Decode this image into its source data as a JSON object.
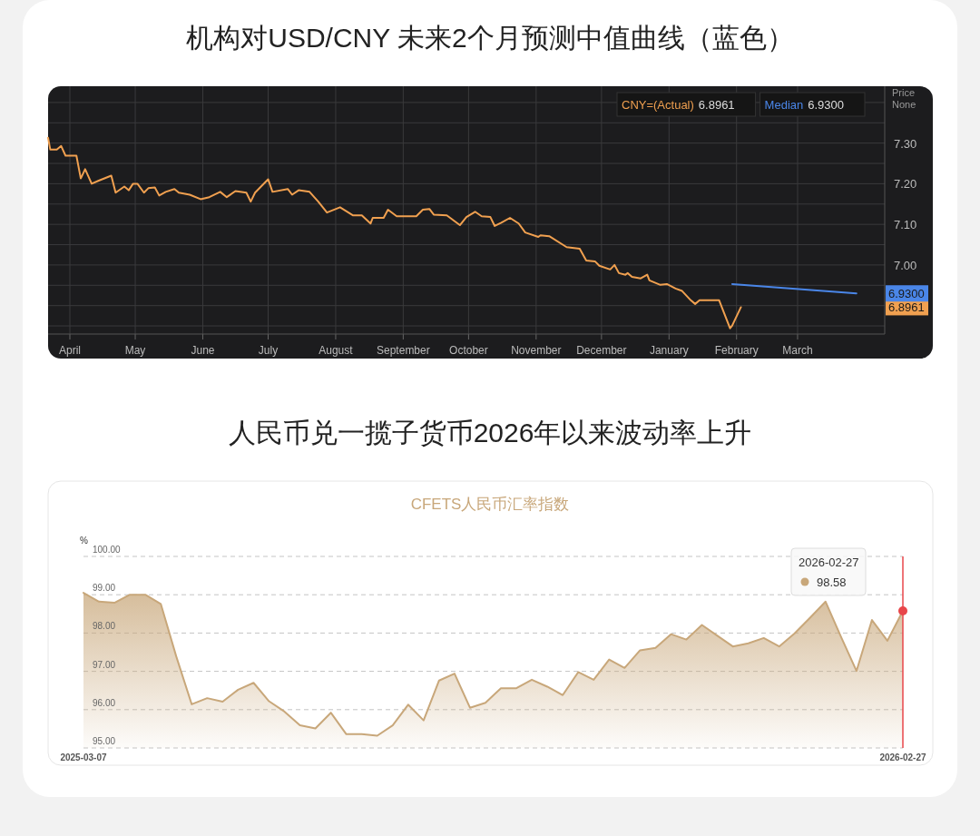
{
  "chart_data": [
    {
      "type": "line",
      "title": "机构对USD/CNY 未来2个月预测中值曲线（蓝色）",
      "xlim": [
        "2025-03-22",
        "2026-04-10"
      ],
      "xticks": [
        {
          "value": "2025-04-01",
          "label": "April"
        },
        {
          "value": "2025-05-01",
          "label": "May"
        },
        {
          "value": "2025-06-01",
          "label": "June"
        },
        {
          "value": "2025-07-01",
          "label": "July"
        },
        {
          "value": "2025-08-01",
          "label": "August"
        },
        {
          "value": "2025-09-01",
          "label": "September"
        },
        {
          "value": "2025-10-01",
          "label": "October"
        },
        {
          "value": "2025-11-01",
          "label": "November"
        },
        {
          "value": "2025-12-01",
          "label": "December"
        },
        {
          "value": "2026-01-01",
          "label": "January"
        },
        {
          "value": "2026-02-01",
          "label": "February"
        },
        {
          "value": "2026-03-01",
          "label": "March"
        }
      ],
      "ylim": [
        6.83,
        7.44
      ],
      "yticks": [
        {
          "value": 6.85,
          "label": null
        },
        {
          "value": 6.9,
          "label": null
        },
        {
          "value": 6.95,
          "label": null
        },
        {
          "value": 7.0,
          "label": "7.00"
        },
        {
          "value": 7.05,
          "label": null
        },
        {
          "value": 7.1,
          "label": "7.10"
        },
        {
          "value": 7.15,
          "label": null
        },
        {
          "value": 7.2,
          "label": "7.20"
        },
        {
          "value": 7.25,
          "label": null
        },
        {
          "value": 7.3,
          "label": "7.30"
        },
        {
          "value": 7.35,
          "label": null
        },
        {
          "value": 7.4,
          "label": null
        }
      ],
      "grid": true,
      "legend": "top right",
      "annotations": [
        "Price None",
        "6.8961",
        "6.9300",
        "6.8961",
        "6.9300"
      ],
      "series": [
        {
          "name": "CNY=(Actual)",
          "color": "#f0a050",
          "x": [
            "2025-03-22",
            "2025-03-23",
            "2025-03-26",
            "2025-03-28",
            "2025-03-30",
            "2025-04-04",
            "2025-04-06",
            "2025-04-08",
            "2025-04-11",
            "2025-04-14",
            "2025-04-20",
            "2025-04-22",
            "2025-04-26",
            "2025-04-28",
            "2025-04-30",
            "2025-05-02",
            "2025-05-05",
            "2025-05-07",
            "2025-05-10",
            "2025-05-12",
            "2025-05-15",
            "2025-05-19",
            "2025-05-21",
            "2025-05-26",
            "2025-05-31",
            "2025-06-04",
            "2025-06-09",
            "2025-06-12",
            "2025-06-16",
            "2025-06-21",
            "2025-06-23",
            "2025-06-25",
            "2025-07-01",
            "2025-07-03",
            "2025-07-10",
            "2025-07-12",
            "2025-07-15",
            "2025-07-20",
            "2025-07-24",
            "2025-07-28",
            "2025-08-03",
            "2025-08-09",
            "2025-08-13",
            "2025-08-17",
            "2025-08-18",
            "2025-08-23",
            "2025-08-25",
            "2025-08-29",
            "2025-09-07",
            "2025-09-10",
            "2025-09-13",
            "2025-09-15",
            "2025-09-21",
            "2025-09-27",
            "2025-09-30",
            "2025-10-04",
            "2025-10-07",
            "2025-10-11",
            "2025-10-13",
            "2025-10-16",
            "2025-10-20",
            "2025-10-24",
            "2025-10-27",
            "2025-11-02",
            "2025-11-03",
            "2025-11-07",
            "2025-11-15",
            "2025-11-21",
            "2025-11-24",
            "2025-11-28",
            "2025-11-30",
            "2025-12-05",
            "2025-12-07",
            "2025-12-09",
            "2025-12-12",
            "2025-12-13",
            "2025-12-15",
            "2025-12-19",
            "2025-12-22",
            "2025-12-23",
            "2025-12-28",
            "2025-12-31",
            "2026-01-04",
            "2026-01-07",
            "2026-01-11",
            "2026-01-13",
            "2026-01-15",
            "2026-01-24",
            "2026-01-29",
            "2026-01-30",
            "2026-02-03"
          ],
          "values": [
            7.313,
            7.284,
            7.284,
            7.293,
            7.269,
            7.269,
            7.213,
            7.236,
            7.2,
            7.207,
            7.22,
            7.178,
            7.193,
            7.184,
            7.2,
            7.2,
            7.178,
            7.189,
            7.191,
            7.171,
            7.18,
            7.187,
            7.178,
            7.173,
            7.162,
            7.167,
            7.18,
            7.167,
            7.182,
            7.178,
            7.156,
            7.178,
            7.211,
            7.18,
            7.187,
            7.173,
            7.184,
            7.18,
            7.156,
            7.129,
            7.142,
            7.122,
            7.122,
            7.102,
            7.116,
            7.116,
            7.136,
            7.12,
            7.12,
            7.136,
            7.138,
            7.124,
            7.122,
            7.098,
            7.118,
            7.131,
            7.12,
            7.118,
            7.096,
            7.104,
            7.116,
            7.102,
            7.08,
            7.069,
            7.073,
            7.071,
            7.044,
            7.04,
            7.011,
            7.009,
            6.998,
            6.989,
            7.0,
            6.98,
            6.976,
            6.98,
            6.971,
            6.967,
            6.976,
            6.962,
            6.951,
            6.953,
            6.942,
            6.936,
            6.913,
            6.904,
            6.913,
            6.913,
            6.844,
            6.851,
            6.8961
          ]
        },
        {
          "name": "Median",
          "color": "#4a86e8",
          "x": [
            "2026-01-30",
            "2026-03-28"
          ],
          "values": [
            6.953,
            6.93
          ]
        }
      ]
    },
    {
      "type": "area",
      "title": "人民币兑一揽子货币2026年以来波动率上升",
      "subtitle": "CFETS人民币汇率指数",
      "ylabel": "%",
      "categories": [
        "2025-03-07",
        null,
        null,
        null,
        null,
        null,
        null,
        null,
        null,
        null,
        null,
        null,
        null,
        null,
        null,
        null,
        null,
        null,
        null,
        null,
        null,
        null,
        null,
        null,
        null,
        null,
        null,
        null,
        null,
        null,
        null,
        null,
        null,
        null,
        null,
        null,
        null,
        null,
        null,
        null,
        null,
        null,
        null,
        null,
        null,
        null,
        null,
        null,
        null,
        null,
        null,
        null,
        null,
        "2026-02-27"
      ],
      "values": [
        99.05,
        98.82,
        98.79,
        99.0,
        99.0,
        98.76,
        97.39,
        96.14,
        96.3,
        96.21,
        96.52,
        96.7,
        96.22,
        95.95,
        95.59,
        95.51,
        95.92,
        95.36,
        95.36,
        95.32,
        95.59,
        96.13,
        95.72,
        96.76,
        96.94,
        96.05,
        96.18,
        96.56,
        96.56,
        96.78,
        96.6,
        96.38,
        96.98,
        96.78,
        97.31,
        97.09,
        97.55,
        97.61,
        97.97,
        97.83,
        98.21,
        97.93,
        97.65,
        97.73,
        97.87,
        97.65,
        97.99,
        98.4,
        98.82,
        97.9,
        97.01,
        98.34,
        97.8,
        98.58
      ],
      "color": "#c8a77a",
      "ylim": [
        95,
        100
      ],
      "yticks": [
        {
          "value": 95,
          "label": "95.00"
        },
        {
          "value": 96,
          "label": "96.00"
        },
        {
          "value": 97,
          "label": "97.00"
        },
        {
          "value": 98,
          "label": "98.00"
        },
        {
          "value": 99,
          "label": "99.00"
        },
        {
          "value": 100,
          "label": "100.00"
        }
      ],
      "grid": "y",
      "ref_lines": [
        {
          "axis": "x",
          "value": "2026-02-27",
          "color": "#e8464a"
        }
      ],
      "annotations": [
        "2026-02-27",
        "98.58"
      ]
    }
  ]
}
